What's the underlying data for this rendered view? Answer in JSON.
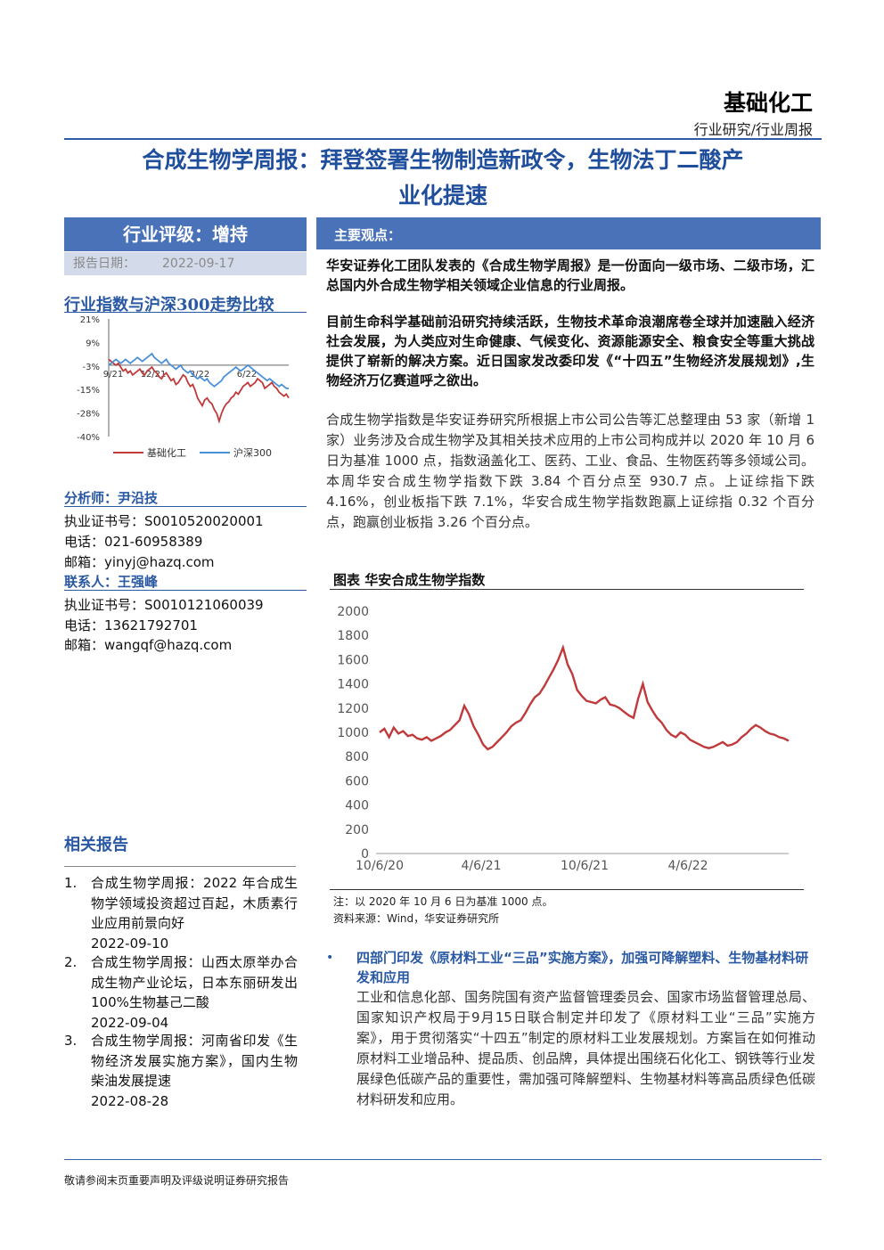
{
  "header": {
    "sector": "基础化工",
    "report_type": "行业研究/行业周报"
  },
  "title_line1": "合成生物学周报：拜登签署生物制造新政令，生物法丁二酸产",
  "title_line2": "业化提速",
  "rating": {
    "label": "行业评级：增持",
    "date_label": "报告日期：",
    "date_value": "2022-09-17"
  },
  "main_points_label": "主要观点：",
  "index_compare": {
    "title": "行业指数与沪深300走势比较",
    "legend_series1": "基础化工",
    "legend_series2": "沪深300"
  },
  "analyst": {
    "label": "分析师：尹沿技",
    "cert": "执业证书号：S0010520020001",
    "phone": "电话：021-60958389",
    "email": "邮箱：yinyj@hazq.com"
  },
  "contact_person": {
    "label": "联系人：王强峰",
    "cert": "执业证书号：S0010121060039",
    "phone": "电话：13621792701",
    "email": "邮箱：wangqf@hazq.com"
  },
  "related": {
    "title": "相关报告",
    "items": [
      {
        "num": "1.",
        "text": "合成生物学周报：2022 年合成生物学领域投资超过百起，木质素行业应用前景向好",
        "date": "2022-09-10"
      },
      {
        "num": "2.",
        "text": "合成生物学周报：山西太原举办合成生物产业论坛，日本东丽研发出 100%生物基己二酸",
        "date": "2022-09-04"
      },
      {
        "num": "3.",
        "text": "合成生物学周报：河南省印发《生物经济发展实施方案》，国内生物柴油发展提速",
        "date": "2022-08-28"
      }
    ]
  },
  "paragraphs": {
    "p1": "华安证券化工团队发表的《合成生物学周报》是一份面向一级市场、二级市场，汇总国内外合成生物学相关领域企业信息的行业周报。",
    "p2": "目前生命科学基础前沿研究持续活跃，生物技术革命浪潮席卷全球并加速融入经济社会发展，为人类应对生命健康、气候变化、资源能源安全、粮食安全等重大挑战提供了崭新的解决方案。近日国家发改委印发《“十四五”生物经济发展规划》,生物经济万亿赛道呼之欲出。",
    "p3": "合成生物学指数是华安证券研究所根据上市公司公告等汇总整理由 53 家（新增 1 家）业务涉及合成生物学及其相关技术应用的上市公司构成并以 2020 年 10 月 6 日为基准 1000 点，指数涵盖化工、医药、工业、食品、生物医药等多领域公司。本周华安合成生物学指数下跌 3.84 个百分点至 930.7 点。上证综指下跌 4.16%，创业板指下跌 7.1%，华安合成生物学指数跑赢上证综指 0.32 个百分点，跑赢创业板指 3.26 个百分点。"
  },
  "figure": {
    "title": "图表 华安合成生物学指数",
    "note": "注：以 2020 年 10 月 6 日为基准 1000 点。",
    "source": "资料来源：Wind，华安证券研究所"
  },
  "bullet": {
    "head": "四部门印发《原材料工业“三品”实施方案》，加强可降解塑料、生物基材料研发和应用",
    "body": "工业和信息化部、国务院国有资产监督管理委员会、国家市场监督管理总局、国家知识产权局于9月15日联合制定并印发了《原材料工业“三品”实施方案》，用于贯彻落实“十四五”制定的原材料工业发展规划。方案旨在如何推动原材料工业增品种、提品质、创品牌，具体提出围绕石化化工、钢铁等行业发展绿色低碳产品的重要性，需加强可降解塑料、生物基材料等高品质绿色低碳材料研发和应用。"
  },
  "footer": "敬请参阅末页重要声明及评级说明证券研究报告",
  "colors": {
    "accent": "#4a72b8",
    "title_blue": "#1f4e9c",
    "series_red": "#c0393b",
    "series_blue": "#4a90d9"
  },
  "chart_data": [
    {
      "type": "line",
      "name": "industry-vs-csi300",
      "yticks": [
        "21%",
        "9%",
        "-3%",
        "-15%",
        "-28%",
        "-40%"
      ],
      "ylim": [
        -40,
        21
      ],
      "xticks": [
        "9/21",
        "12/21",
        "3/22",
        "6/22"
      ],
      "series": [
        {
          "name": "基础化工",
          "color": "#c0393b",
          "values": [
            0,
            -1,
            -2,
            -3,
            -2,
            -4,
            -6,
            -5,
            -7,
            -6,
            -8,
            -7,
            -6,
            -5,
            -7,
            -8,
            -6,
            -5,
            -4,
            -6,
            -7,
            -9,
            -10,
            -8,
            -7,
            -9,
            -11,
            -10,
            -13,
            -12,
            -10,
            -8,
            -9,
            -12,
            -14,
            -13,
            -16,
            -20,
            -22,
            -24,
            -21,
            -20,
            -22,
            -23,
            -26,
            -28,
            -32,
            -28,
            -25,
            -23,
            -22,
            -20,
            -19,
            -17,
            -18,
            -16,
            -14,
            -13,
            -12,
            -14,
            -13,
            -12,
            -10,
            -11,
            -12,
            -15,
            -14,
            -13,
            -12,
            -14,
            -15,
            -17,
            -18,
            -19,
            -18,
            -20
          ]
        },
        {
          "name": "沪深300",
          "color": "#4a90d9",
          "values": [
            -3,
            -2,
            -1,
            0,
            -1,
            -2,
            -1,
            0,
            -1,
            -2,
            -1,
            0,
            1,
            0,
            -1,
            0,
            1,
            2,
            3,
            1,
            0,
            -1,
            -2,
            -1,
            0,
            -2,
            -3,
            -4,
            -5,
            -4,
            -3,
            -5,
            -6,
            -7,
            -6,
            -8,
            -9,
            -10,
            -9,
            -10,
            -11,
            -10,
            -12,
            -13,
            -14,
            -13,
            -12,
            -11,
            -9,
            -8,
            -7,
            -6,
            -5,
            -4,
            -5,
            -6,
            -5,
            -4,
            -3,
            -4,
            -5,
            -6,
            -7,
            -8,
            -9,
            -10,
            -11,
            -10,
            -11,
            -12,
            -13,
            -14,
            -13,
            -14,
            -15,
            -15
          ]
        }
      ]
    },
    {
      "type": "line",
      "name": "huaan-synbio-index",
      "title": "华安合成生物学指数",
      "ylim": [
        0,
        2000
      ],
      "yticks": [
        0,
        200,
        400,
        600,
        800,
        1000,
        1200,
        1400,
        1600,
        1800,
        2000
      ],
      "xticks": [
        "10/6/20",
        "4/6/21",
        "10/6/21",
        "4/6/22"
      ],
      "series": [
        {
          "name": "华安合成生物学指数",
          "color": "#c0393b",
          "values": [
            1000,
            1030,
            960,
            1040,
            990,
            1010,
            970,
            980,
            950,
            940,
            960,
            930,
            950,
            970,
            1000,
            1020,
            1060,
            1100,
            1220,
            1150,
            1050,
            980,
            900,
            860,
            880,
            920,
            960,
            1000,
            1050,
            1080,
            1100,
            1160,
            1230,
            1290,
            1320,
            1380,
            1450,
            1520,
            1600,
            1700,
            1560,
            1480,
            1350,
            1300,
            1260,
            1250,
            1240,
            1270,
            1290,
            1230,
            1220,
            1200,
            1170,
            1140,
            1120,
            1280,
            1400,
            1250,
            1180,
            1120,
            1080,
            1020,
            980,
            960,
            1000,
            980,
            940,
            920,
            900,
            880,
            870,
            880,
            900,
            920,
            890,
            900,
            920,
            960,
            990,
            1030,
            1060,
            1040,
            1010,
            990,
            980,
            960,
            950,
            930
          ]
        }
      ]
    }
  ]
}
